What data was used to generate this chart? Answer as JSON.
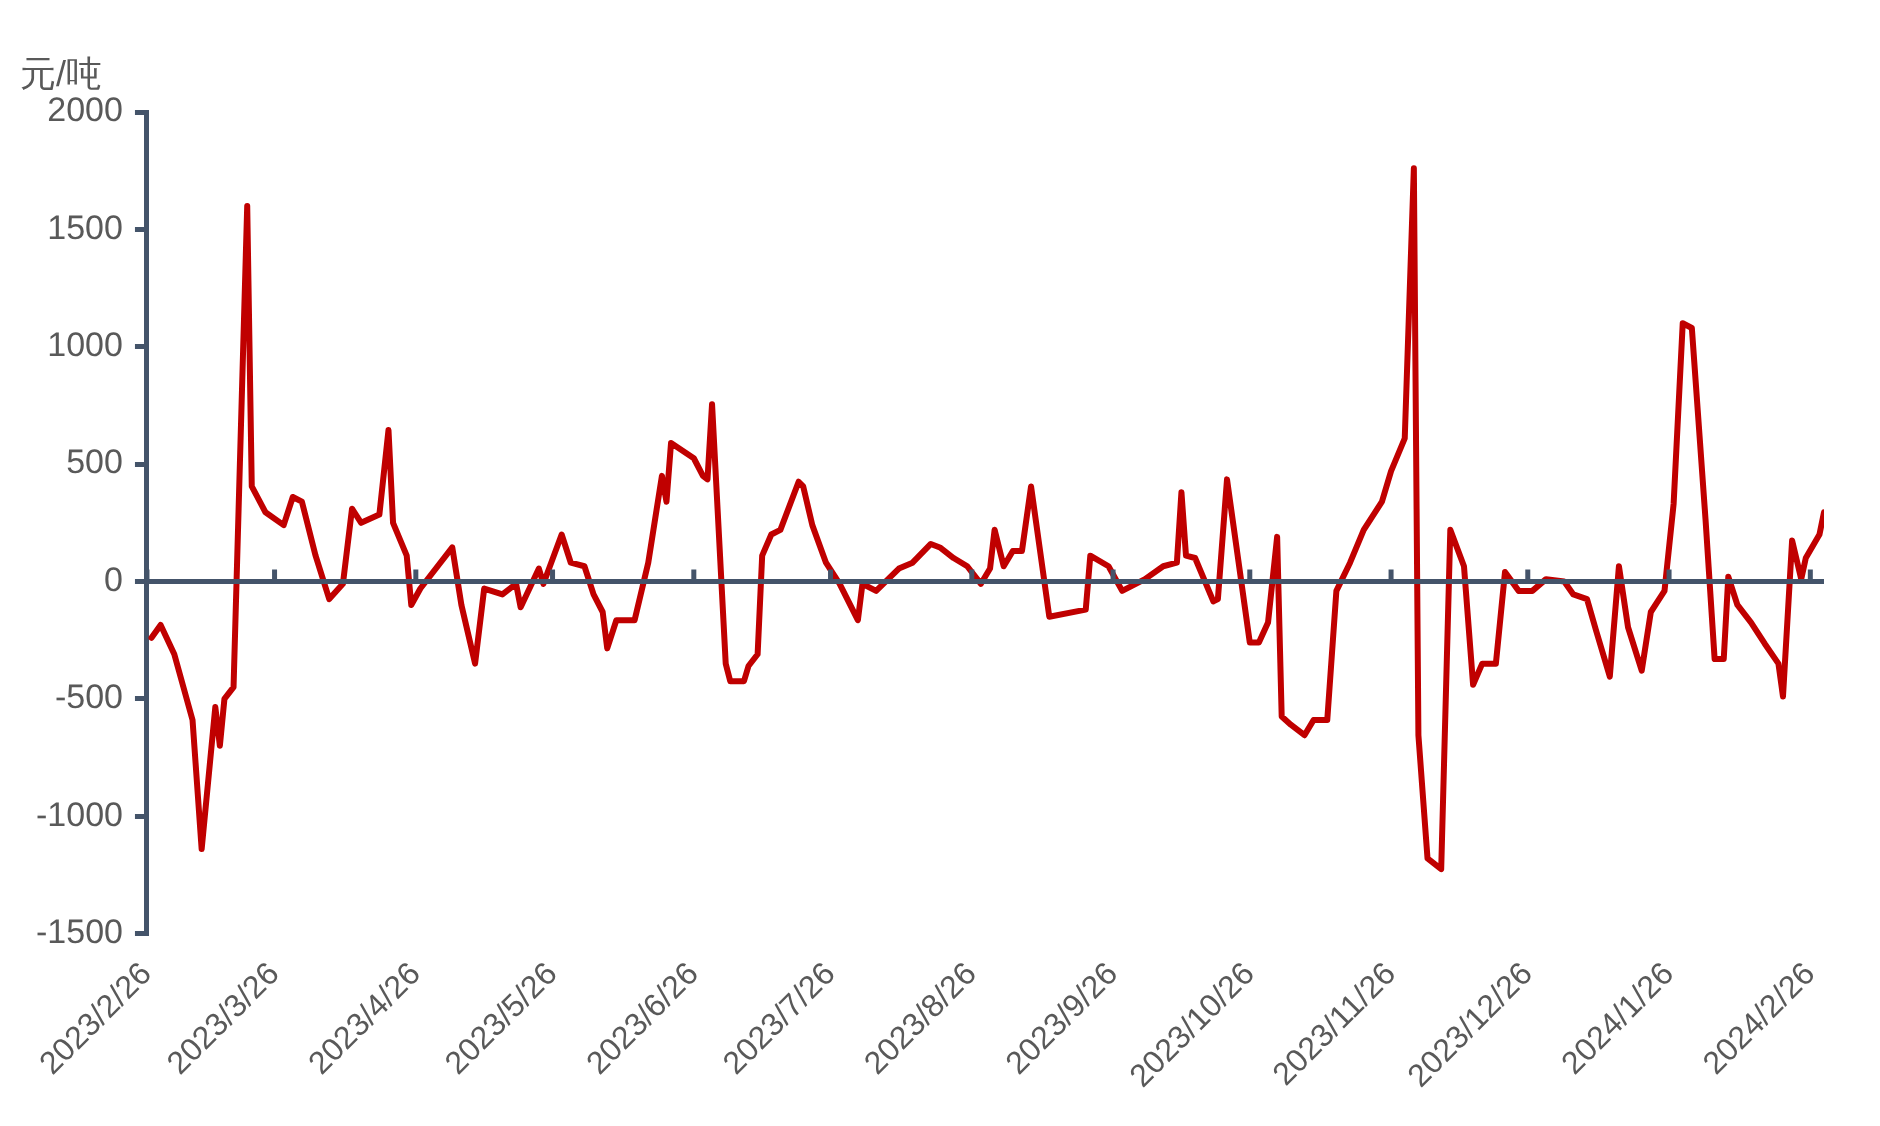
{
  "chart_data": {
    "type": "line",
    "ylabel": "元/吨",
    "marker": "none",
    "xlim": [
      "2023-02-26",
      "2024-02-29"
    ],
    "xticks": [
      {
        "value": "2023-02-26",
        "label": "2023/2/26"
      },
      {
        "value": "2023-03-26",
        "label": "2023/3/26"
      },
      {
        "value": "2023-04-26",
        "label": "2023/4/26"
      },
      {
        "value": "2023-05-26",
        "label": "2023/5/26"
      },
      {
        "value": "2023-06-26",
        "label": "2023/6/26"
      },
      {
        "value": "2023-07-26",
        "label": "2023/7/26"
      },
      {
        "value": "2023-08-26",
        "label": "2023/8/26"
      },
      {
        "value": "2023-09-26",
        "label": "2023/9/26"
      },
      {
        "value": "2023-10-26",
        "label": "2023/10/26"
      },
      {
        "value": "2023-11-26",
        "label": "2023/11/26"
      },
      {
        "value": "2023-12-26",
        "label": "2023/12/26"
      },
      {
        "value": "2024-01-26",
        "label": "2024/1/26"
      },
      {
        "value": "2024-02-26",
        "label": "2024/2/26"
      }
    ],
    "ylim": [
      -1500,
      2000
    ],
    "yticks": [
      -1500,
      -1000,
      -500,
      0,
      500,
      1000,
      1500,
      2000
    ],
    "x": [
      "2023-02-27",
      "2023-03-01",
      "2023-03-04",
      "2023-03-08",
      "2023-03-10",
      "2023-03-13",
      "2023-03-14",
      "2023-03-15",
      "2023-03-17",
      "2023-03-20",
      "2023-03-21",
      "2023-03-24",
      "2023-03-28",
      "2023-03-30",
      "2023-04-01",
      "2023-04-04",
      "2023-04-07",
      "2023-04-10",
      "2023-04-12",
      "2023-04-14",
      "2023-04-18",
      "2023-04-20",
      "2023-04-21",
      "2023-04-24",
      "2023-04-25",
      "2023-04-27",
      "2023-05-04",
      "2023-05-06",
      "2023-05-09",
      "2023-05-11",
      "2023-05-15",
      "2023-05-18",
      "2023-05-19",
      "2023-05-23",
      "2023-05-24",
      "2023-05-28",
      "2023-05-30",
      "2023-06-02",
      "2023-06-04",
      "2023-06-06",
      "2023-06-07",
      "2023-06-09",
      "2023-06-13",
      "2023-06-16",
      "2023-06-19",
      "2023-06-20",
      "2023-06-21",
      "2023-06-26",
      "2023-06-28",
      "2023-06-29",
      "2023-06-30",
      "2023-07-03",
      "2023-07-04",
      "2023-07-07",
      "2023-07-08",
      "2023-07-10",
      "2023-07-11",
      "2023-07-13",
      "2023-07-15",
      "2023-07-19",
      "2023-07-20",
      "2023-07-22",
      "2023-07-25",
      "2023-07-28",
      "2023-08-01",
      "2023-08-02",
      "2023-08-05",
      "2023-08-10",
      "2023-08-13",
      "2023-08-17",
      "2023-08-19",
      "2023-08-22",
      "2023-08-25",
      "2023-08-28",
      "2023-08-30",
      "2023-08-31",
      "2023-09-02",
      "2023-09-04",
      "2023-09-06",
      "2023-09-08",
      "2023-09-12",
      "2023-09-20",
      "2023-09-21",
      "2023-09-25",
      "2023-09-28",
      "2023-10-03",
      "2023-10-07",
      "2023-10-10",
      "2023-10-11",
      "2023-10-12",
      "2023-10-14",
      "2023-10-18",
      "2023-10-19",
      "2023-10-21",
      "2023-10-26",
      "2023-10-28",
      "2023-10-30",
      "2023-11-01",
      "2023-11-02",
      "2023-11-04",
      "2023-11-07",
      "2023-11-09",
      "2023-11-12",
      "2023-11-14",
      "2023-11-17",
      "2023-11-20",
      "2023-11-24",
      "2023-11-26",
      "2023-11-29",
      "2023-12-01",
      "2023-12-02",
      "2023-12-04",
      "2023-12-07",
      "2023-12-09",
      "2023-12-12",
      "2023-12-14",
      "2023-12-16",
      "2023-12-19",
      "2023-12-21",
      "2023-12-24",
      "2023-12-27",
      "2023-12-30",
      "2024-01-03",
      "2024-01-05",
      "2024-01-08",
      "2024-01-10",
      "2024-01-13",
      "2024-01-15",
      "2024-01-17",
      "2024-01-20",
      "2024-01-22",
      "2024-01-25",
      "2024-01-27",
      "2024-01-29",
      "2024-01-31",
      "2024-02-03",
      "2024-02-05",
      "2024-02-07",
      "2024-02-08",
      "2024-02-10",
      "2024-02-13",
      "2024-02-16",
      "2024-02-19",
      "2024-02-20",
      "2024-02-22",
      "2024-02-24",
      "2024-02-25",
      "2024-02-28",
      "2024-02-29"
    ],
    "series": [
      {
        "color": "#c00000",
        "values": [
          -240,
          -185,
          -310,
          -590,
          -1140,
          -535,
          -700,
          -500,
          -450,
          1600,
          405,
          295,
          240,
          360,
          340,
          110,
          -75,
          -10,
          310,
          250,
          285,
          645,
          250,
          110,
          -100,
          -30,
          145,
          -100,
          -350,
          -30,
          -55,
          -10,
          -110,
          55,
          -10,
          200,
          80,
          65,
          -55,
          -130,
          -285,
          -165,
          -165,
          80,
          450,
          340,
          590,
          525,
          450,
          435,
          755,
          -350,
          -425,
          -425,
          -360,
          -310,
          110,
          200,
          220,
          425,
          405,
          240,
          80,
          -10,
          -165,
          -10,
          -40,
          55,
          80,
          160,
          145,
          100,
          65,
          -10,
          55,
          220,
          65,
          130,
          130,
          405,
          -150,
          -120,
          110,
          65,
          -40,
          10,
          65,
          80,
          380,
          110,
          100,
          -85,
          -75,
          435,
          -260,
          -260,
          -175,
          190,
          -575,
          -610,
          -655,
          -590,
          -590,
          -40,
          80,
          220,
          340,
          470,
          610,
          1760,
          -655,
          -1180,
          -1225,
          220,
          65,
          -440,
          -350,
          -350,
          40,
          -40,
          -40,
          10,
          0,
          -55,
          -75,
          -210,
          -405,
          65,
          -195,
          -380,
          -130,
          -40,
          330,
          1100,
          1080,
          265,
          -330,
          -330,
          20,
          -100,
          -175,
          -265,
          -350,
          -490,
          175,
          10,
          100,
          200,
          295
        ]
      }
    ]
  }
}
